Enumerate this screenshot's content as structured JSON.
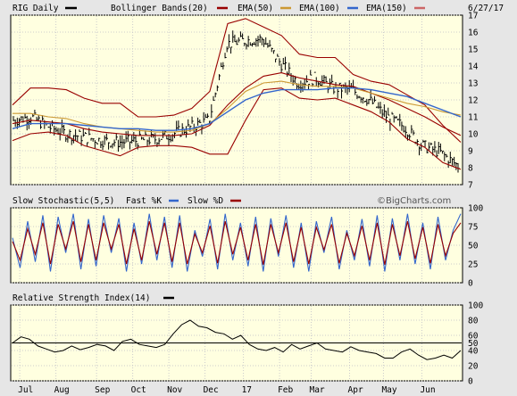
{
  "header": {
    "symbol": "RIG Daily",
    "bollinger_label": "Bollinger Bands(20)",
    "ema50_label": "EMA(50)",
    "ema100_label": "EMA(100)",
    "ema150_label": "EMA(150)",
    "date": "6/27/17"
  },
  "colors": {
    "price": "#000000",
    "bollinger": "#990000",
    "ema50": "#990000",
    "ema100": "#cc9933",
    "ema150": "#3366cc",
    "stoch_fast": "#3366cc",
    "stoch_slow": "#990000",
    "rsi": "#000000",
    "panel_bg": "#ffffe0",
    "outer_bg": "#e6e6e6"
  },
  "chart_data": [
    {
      "type": "line",
      "name": "price",
      "title": "RIG Daily",
      "x_tick_labels": [
        "Jul",
        "Aug",
        "Sep",
        "Oct",
        "Nov",
        "Dec",
        "17",
        "Feb",
        "Mar",
        "Apr",
        "May",
        "Jun"
      ],
      "y_ticks": [
        7,
        8,
        9,
        10,
        11,
        12,
        13,
        14,
        15,
        16,
        17
      ],
      "ylim": [
        7,
        17
      ],
      "series": [
        {
          "name": "Bollinger Bands(20)",
          "key": "bb_upper",
          "values": [
            11.7,
            12.7,
            12.7,
            12.6,
            12.1,
            11.8,
            11.8,
            11.0,
            11.0,
            11.1,
            11.5,
            12.5,
            16.5,
            16.8,
            16.3,
            15.8,
            14.7,
            14.5,
            14.5,
            13.5,
            13.1,
            12.9,
            12.3,
            11.7,
            10.5,
            9.5
          ]
        },
        {
          "name": "",
          "key": "bb_lower",
          "values": [
            9.6,
            10.0,
            10.1,
            9.9,
            9.3,
            9.0,
            8.7,
            9.2,
            9.3,
            9.3,
            9.2,
            8.8,
            8.8,
            10.8,
            12.6,
            12.7,
            12.1,
            12.0,
            12.1,
            11.7,
            11.3,
            10.7,
            9.7,
            9.2,
            8.3,
            7.9
          ]
        },
        {
          "name": "EMA(50)",
          "key": "ema50",
          "values": [
            10.6,
            10.8,
            10.7,
            10.6,
            10.3,
            10.1,
            10.0,
            9.9,
            9.9,
            9.9,
            10.0,
            10.5,
            11.7,
            12.7,
            13.4,
            13.6,
            13.3,
            13.1,
            12.9,
            12.8,
            12.4,
            12.0,
            11.5,
            11.0,
            10.4,
            9.9
          ]
        },
        {
          "name": "EMA(100)",
          "key": "ema100",
          "values": [
            11.2,
            11.2,
            11.0,
            10.9,
            10.6,
            10.4,
            10.3,
            10.2,
            10.1,
            10.1,
            10.2,
            10.6,
            11.5,
            12.5,
            13.0,
            13.1,
            12.9,
            12.8,
            12.8,
            12.7,
            12.4,
            12.1,
            11.8,
            11.6,
            11.3,
            11.1
          ]
        },
        {
          "name": "EMA(150)",
          "key": "ema150",
          "values": [
            10.3,
            10.6,
            10.6,
            10.6,
            10.5,
            10.4,
            10.3,
            10.3,
            10.2,
            10.2,
            10.3,
            10.6,
            11.3,
            12.0,
            12.4,
            12.6,
            12.6,
            12.6,
            12.7,
            12.7,
            12.6,
            12.4,
            12.2,
            11.8,
            11.4,
            11.0
          ]
        },
        {
          "name": "",
          "key": "close",
          "values": [
            10.8,
            11.0,
            10.4,
            10.0,
            9.8,
            9.6,
            9.5,
            9.6,
            9.7,
            10.0,
            10.4,
            10.8,
            15.3,
            15.5,
            15.6,
            14.2,
            13.0,
            13.3,
            12.7,
            12.6,
            12.0,
            11.0,
            10.4,
            9.3,
            8.9,
            8.1
          ]
        }
      ]
    },
    {
      "type": "line",
      "name": "stochastic",
      "title": "Slow Stochastic(5,5)",
      "y_ticks": [
        0,
        25,
        50,
        75,
        100
      ],
      "ylim": [
        0,
        100
      ],
      "series": [
        {
          "name": "Fast %K",
          "key": "fast",
          "values": [
            60,
            20,
            82,
            28,
            90,
            15,
            88,
            40,
            92,
            18,
            85,
            22,
            90,
            40,
            86,
            15,
            80,
            25,
            92,
            30,
            88,
            20,
            90,
            15,
            70,
            35,
            85,
            18,
            92,
            30,
            80,
            22,
            88,
            15,
            86,
            35,
            90,
            20,
            80,
            15,
            82,
            40,
            88,
            18,
            70,
            30,
            85,
            22,
            90,
            15,
            86,
            30,
            92,
            25,
            80,
            18,
            88,
            30,
            70,
            92
          ]
        },
        {
          "name": "Slow %D",
          "key": "slow",
          "values": [
            55,
            30,
            72,
            38,
            80,
            25,
            78,
            45,
            82,
            28,
            78,
            30,
            80,
            45,
            78,
            25,
            72,
            30,
            82,
            38,
            80,
            28,
            80,
            25,
            65,
            40,
            76,
            26,
            82,
            38,
            74,
            30,
            78,
            24,
            78,
            40,
            80,
            28,
            74,
            25,
            74,
            44,
            78,
            26,
            66,
            36,
            76,
            30,
            80,
            24,
            78,
            36,
            82,
            32,
            74,
            26,
            78,
            36,
            66,
            80
          ]
        }
      ]
    },
    {
      "type": "line",
      "name": "rsi",
      "title": "Relative Strength Index(14)",
      "y_ticks": [
        0,
        20,
        40,
        50,
        60,
        80,
        100
      ],
      "ylim": [
        0,
        100
      ],
      "series": [
        {
          "name": "",
          "key": "rsi",
          "values": [
            50,
            58,
            55,
            46,
            42,
            38,
            40,
            46,
            41,
            44,
            48,
            46,
            40,
            52,
            55,
            48,
            46,
            44,
            48,
            62,
            74,
            80,
            72,
            70,
            64,
            62,
            55,
            60,
            48,
            42,
            40,
            44,
            38,
            48,
            42,
            46,
            50,
            42,
            40,
            38,
            45,
            40,
            38,
            36,
            30,
            30,
            38,
            42,
            34,
            28,
            30,
            34,
            30,
            40
          ]
        }
      ]
    }
  ],
  "panels": {
    "stoch_label": "Slow Stochastic(5,5)",
    "fast_label": "Fast %K",
    "slow_label": "Slow %D",
    "watermark": "©BigCharts.com",
    "rsi_label": "Relative Strength Index(14)"
  }
}
